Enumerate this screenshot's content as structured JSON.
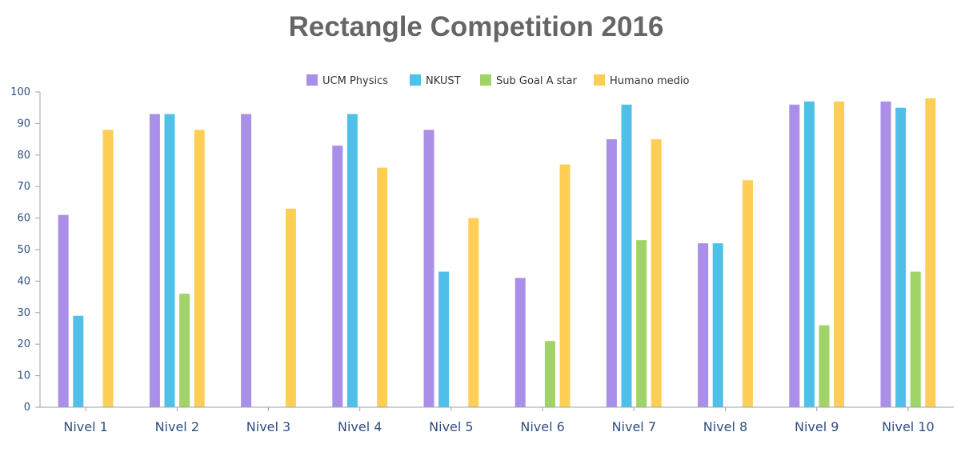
{
  "chart_data": {
    "type": "bar",
    "title": "Rectangle Competition 2016",
    "xlabel": "",
    "ylabel": "",
    "ylim": [
      0,
      100
    ],
    "yticks": [
      0,
      10,
      20,
      30,
      40,
      50,
      60,
      70,
      80,
      90,
      100
    ],
    "grid": false,
    "legend_position": "top-center",
    "categories": [
      "Nivel 1",
      "Nivel 2",
      "Nivel 3",
      "Nivel 4",
      "Nivel 5",
      "Nivel 6",
      "Nivel 7",
      "Nivel 8",
      "Nivel 9",
      "Nivel 10"
    ],
    "series": [
      {
        "name": "UCM Physics",
        "color": "#a98fe8",
        "values": [
          61,
          93,
          93,
          83,
          88,
          41,
          85,
          52,
          96,
          97
        ]
      },
      {
        "name": "NKUST",
        "color": "#4fc1e9",
        "values": [
          29,
          93,
          0,
          93,
          43,
          0,
          96,
          52,
          97,
          95
        ]
      },
      {
        "name": "Sub Goal A star",
        "color": "#a0d468",
        "values": [
          0,
          36,
          0,
          0,
          0,
          21,
          53,
          0,
          26,
          43
        ]
      },
      {
        "name": "Humano medio",
        "color": "#ffce54",
        "values": [
          88,
          88,
          63,
          76,
          60,
          77,
          85,
          72,
          97,
          98
        ]
      }
    ]
  }
}
